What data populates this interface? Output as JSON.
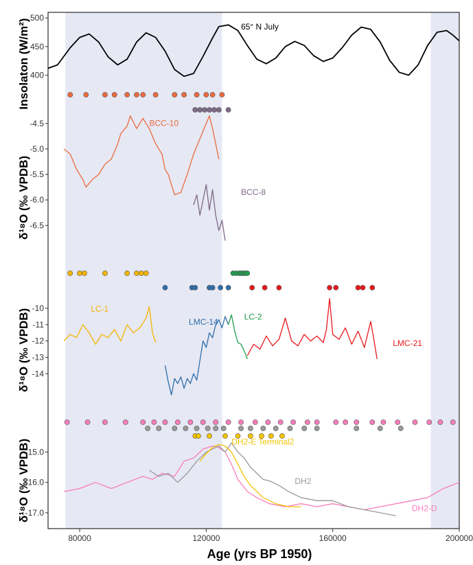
{
  "chart_data": {
    "type": "line",
    "x_axis": {
      "label": "Age (yrs BP 1950)",
      "range": [
        70000,
        200000
      ],
      "ticks": [
        80000,
        120000,
        160000,
        200000
      ],
      "tick_labels": [
        "80000",
        "120000",
        "160000",
        "200000"
      ]
    },
    "shaded_intervals": [
      [
        75500,
        125000
      ],
      [
        191000,
        200000
      ]
    ],
    "panels": [
      {
        "id": "insolation",
        "ylabel": "Insolaton (W/m²)",
        "y_ticks": [
          400,
          450,
          500
        ],
        "y_tick_labels": [
          "400",
          "450",
          "500"
        ],
        "ylim": [
          385,
          505
        ],
        "series": [
          {
            "name": "65° N July",
            "color": "#000000",
            "x": [
              70000,
              73000,
              77000,
              80000,
              83000,
              86000,
              89000,
              92000,
              95000,
              98000,
              101000,
              104000,
              107000,
              110000,
              113000,
              116000,
              119000,
              122000,
              124000,
              127000,
              130000,
              133000,
              136000,
              139000,
              142000,
              145000,
              148000,
              151000,
              154000,
              157000,
              160000,
              163000,
              166000,
              169000,
              172000,
              175000,
              178000,
              181000,
              184000,
              187000,
              190000,
              193000,
              196000,
              198000,
              200000
            ],
            "y": [
              412,
              418,
              448,
              466,
              472,
              458,
              432,
              418,
              428,
              458,
              474,
              466,
              442,
              410,
              398,
              403,
              433,
              465,
              485,
              488,
              478,
              452,
              428,
              420,
              430,
              450,
              459,
              452,
              434,
              424,
              430,
              448,
              470,
              484,
              480,
              458,
              426,
              405,
              400,
              418,
              452,
              475,
              478,
              470,
              460
            ]
          }
        ],
        "annotations": [
          {
            "text": "65° N July",
            "x": 131000,
            "y": 480
          }
        ]
      },
      {
        "id": "bcc",
        "ylabel": "δ¹⁸O (‰ VPDB)",
        "y_ticks": [
          -4.5,
          -5.0,
          -5.5,
          -6.0,
          -6.5
        ],
        "y_tick_labels": [
          "-4.5",
          "-5.0",
          "-5.5",
          "-6.0",
          "-6.5"
        ],
        "ylim": [
          -6.9,
          -4.3
        ],
        "reversed": true,
        "series": [
          {
            "name": "BCC-10",
            "color": "#EB6B3E",
            "x": [
              75000,
              77000,
              79000,
              81000,
              82000,
              84000,
              86000,
              88000,
              90000,
              92000,
              93000,
              95000,
              96000,
              98000,
              100000,
              102000,
              104000,
              106000,
              107000,
              108000,
              109000,
              110000,
              112000,
              114000,
              116000,
              118000,
              120000,
              121000,
              122000,
              123000,
              124000
            ],
            "y": [
              -5.0,
              -5.1,
              -5.4,
              -5.6,
              -5.75,
              -5.6,
              -5.5,
              -5.3,
              -5.2,
              -4.9,
              -4.7,
              -4.55,
              -4.35,
              -4.6,
              -4.4,
              -4.6,
              -4.9,
              -5.1,
              -5.4,
              -5.5,
              -5.7,
              -5.9,
              -5.85,
              -5.5,
              -5.1,
              -4.8,
              -4.5,
              -4.35,
              -4.6,
              -4.9,
              -5.2
            ]
          },
          {
            "name": "BCC-8",
            "color": "#7E6A86",
            "x": [
              116000,
              117000,
              118000,
              119000,
              120000,
              121000,
              122000,
              123000,
              124000,
              125000,
              126000
            ],
            "y": [
              -6.1,
              -5.9,
              -6.3,
              -6.0,
              -5.7,
              -6.2,
              -5.8,
              -6.3,
              -6.6,
              -6.4,
              -6.8
            ]
          }
        ],
        "annotations": [
          {
            "text": "BCC-10",
            "x": 102000,
            "y": -4.55
          },
          {
            "text": "BCC-8",
            "x": 131000,
            "y": -5.9
          }
        ]
      },
      {
        "id": "lc_lmc",
        "ylabel": "δ¹⁸O (‰ VPDB)",
        "y_ticks": [
          -10,
          -11,
          -12,
          -13,
          -14
        ],
        "y_tick_labels": [
          "-10",
          "-11",
          "-12",
          "-13",
          "-14"
        ],
        "ylim": [
          -15.5,
          -9.2
        ],
        "reversed": true,
        "series": [
          {
            "name": "LC-1",
            "color": "#F5B400",
            "x": [
              75000,
              77000,
              79000,
              81000,
              83000,
              85000,
              87000,
              89000,
              91000,
              93000,
              95000,
              97000,
              99000,
              101000,
              102000,
              103000,
              104000
            ],
            "y": [
              -12.0,
              -11.6,
              -11.8,
              -11.0,
              -11.5,
              -12.2,
              -11.6,
              -11.8,
              -11.3,
              -12.0,
              -11.0,
              -11.5,
              -11.2,
              -10.6,
              -9.9,
              -11.5,
              -12.1
            ]
          },
          {
            "name": "LMC-14",
            "color": "#2E6DA8",
            "x": [
              107000,
              108000,
              109000,
              110000,
              111000,
              112000,
              113000,
              114000,
              115000,
              116000,
              117000,
              118000,
              119000,
              120000,
              121000,
              122000,
              123000,
              124000,
              125000,
              126000,
              127000
            ],
            "y": [
              -13.5,
              -14.5,
              -15.3,
              -14.3,
              -14.6,
              -14.2,
              -14.9,
              -14.3,
              -14.6,
              -14.0,
              -14.4,
              -13.2,
              -12.0,
              -12.4,
              -11.5,
              -11.8,
              -11.0,
              -10.7,
              -11.2,
              -10.5,
              -11.0
            ]
          },
          {
            "name": "LC-2",
            "color": "#1E9E4E",
            "x": [
              127000,
              128000,
              129000,
              130000,
              131000,
              132000,
              133000
            ],
            "y": [
              -11.0,
              -10.4,
              -11.4,
              -12.1,
              -12.2,
              -12.6,
              -13.1
            ]
          },
          {
            "name": "LMC-21",
            "color": "#E8181B",
            "x": [
              133000,
              135000,
              137000,
              139000,
              141000,
              143000,
              145000,
              147000,
              149000,
              151000,
              153000,
              155000,
              157000,
              158000,
              159000,
              160000,
              162000,
              164000,
              166000,
              168000,
              170000,
              172000,
              173000,
              174000
            ],
            "y": [
              -12.9,
              -12.2,
              -12.5,
              -11.7,
              -12.3,
              -11.9,
              -10.6,
              -12.0,
              -12.3,
              -11.6,
              -12.0,
              -11.7,
              -12.1,
              -11.3,
              -9.4,
              -11.6,
              -11.9,
              -11.2,
              -12.2,
              -11.4,
              -12.4,
              -10.8,
              -11.9,
              -13.1
            ]
          }
        ],
        "annotations": [
          {
            "text": "LC-1",
            "x": 83500,
            "y": -10.2
          },
          {
            "text": "LMC-14",
            "x": 114500,
            "y": -11.0
          },
          {
            "text": "LC-2",
            "x": 132000,
            "y": -10.7
          },
          {
            "text": "LMC-21",
            "x": 179000,
            "y": -12.3
          }
        ]
      },
      {
        "id": "dh2",
        "ylabel": "δ¹⁸O (‰ VPDB)",
        "y_ticks": [
          -15.0,
          -16.0,
          -17.0
        ],
        "y_tick_labels": [
          "-15.0",
          "-16.0",
          "-17.0"
        ],
        "ylim": [
          -17.25,
          -14.65
        ],
        "reversed": true,
        "series": [
          {
            "name": "DH2-D",
            "color": "#F77DBB",
            "x": [
              75000,
              80000,
              85000,
              90000,
              95000,
              100000,
              103000,
              106000,
              110000,
              113000,
              116000,
              119000,
              122000,
              124000,
              126000,
              128000,
              130000,
              133000,
              136000,
              140000,
              145000,
              150000,
              155000,
              160000,
              165000,
              170000,
              175000,
              180000,
              185000,
              190000,
              195000,
              200000
            ],
            "y": [
              -16.3,
              -16.2,
              -16.0,
              -16.2,
              -16.0,
              -15.8,
              -15.9,
              -15.7,
              -15.8,
              -15.3,
              -15.2,
              -14.9,
              -14.8,
              -14.85,
              -15.0,
              -15.4,
              -15.9,
              -16.3,
              -16.5,
              -16.7,
              -16.8,
              -16.7,
              -16.8,
              -16.7,
              -16.8,
              -16.9,
              -16.8,
              -16.7,
              -16.6,
              -16.5,
              -16.2,
              -16.0
            ]
          },
          {
            "name": "DH2",
            "color": "#999999",
            "x": [
              102000,
              105000,
              108000,
              111000,
              114000,
              117000,
              120000,
              122000,
              124000,
              126000,
              128000,
              130000,
              132000,
              134000,
              136000,
              138000,
              140000,
              143000,
              146000,
              150000,
              155000,
              160000,
              165000,
              170000,
              175000,
              180000
            ],
            "y": [
              -15.6,
              -15.8,
              -15.7,
              -16.0,
              -15.7,
              -15.3,
              -15.0,
              -14.9,
              -14.8,
              -15.0,
              -14.7,
              -15.0,
              -15.2,
              -15.5,
              -15.7,
              -15.9,
              -15.95,
              -16.1,
              -16.3,
              -16.5,
              -16.6,
              -16.6,
              -16.8,
              -16.9,
              -17.0,
              -17.1
            ]
          },
          {
            "name": "DH2-E Terminal2",
            "color": "#F2C400",
            "x": [
              118000,
              120000,
              122000,
              124000,
              126000,
              128000,
              130000,
              132000,
              134000,
              136000,
              138000,
              140000,
              142000,
              144000,
              146000,
              148000,
              150000
            ],
            "y": [
              -15.3,
              -15.05,
              -14.85,
              -14.75,
              -14.8,
              -15.0,
              -15.4,
              -15.8,
              -16.1,
              -16.3,
              -16.5,
              -16.6,
              -16.7,
              -16.75,
              -16.8,
              -16.8,
              -16.8
            ]
          }
        ],
        "annotations": [
          {
            "text": "DH2-E Terminal2",
            "x": 128000,
            "y": -14.75
          },
          {
            "text": "DH2",
            "x": 148000,
            "y": -16.05
          },
          {
            "text": "DH2-D",
            "x": 185000,
            "y": -16.95
          }
        ]
      }
    ],
    "dating_rows": [
      {
        "panel": "bcc",
        "color": "#EB6B3E",
        "x": [
          77000,
          82000,
          88000,
          91000,
          95000,
          98000,
          100000,
          104000,
          110000,
          113000,
          117000,
          120000,
          122000,
          125000
        ]
      },
      {
        "panel": "bcc",
        "color": "#7E6A86",
        "x": [
          116500,
          118000,
          119500,
          121000,
          122500,
          124000,
          127000
        ]
      },
      {
        "panel": "lc_lmc",
        "color": "#F5B400",
        "x": [
          77000,
          80000,
          81500,
          88000,
          95000,
          98000,
          99500,
          101000
        ]
      },
      {
        "panel": "lc_lmc",
        "color": "#1E9E4E",
        "x": [
          128500,
          129500,
          130500,
          131000,
          131500,
          132000,
          132500,
          133000
        ]
      },
      {
        "panel": "lc_lmc",
        "color": "#2E6DA8",
        "x": [
          107000,
          115500,
          116500,
          121000,
          122000,
          124500,
          127000
        ]
      },
      {
        "panel": "lc_lmc",
        "color": "#E8181B",
        "x": [
          134500,
          138500,
          143000,
          159000,
          161000,
          168000,
          169500,
          172500
        ]
      },
      {
        "panel": "dh2",
        "color": "#F77DBB",
        "x": [
          76000,
          82500,
          88000,
          94500,
          100000,
          103500,
          107000,
          111000,
          115000,
          119000,
          123000,
          127000,
          131000,
          135500,
          139500,
          143500,
          147500,
          152000,
          155000,
          161000,
          164000,
          167500,
          172500,
          176000,
          180500,
          186000,
          190500,
          194000,
          198000
        ]
      },
      {
        "panel": "dh2",
        "color": "#999999",
        "x": [
          101500,
          105000,
          110000,
          113500,
          117000,
          120500,
          123000,
          125500,
          131000,
          134000,
          138000,
          142000,
          146500,
          151000,
          155000,
          167500,
          175000,
          181500
        ]
      },
      {
        "panel": "dh2",
        "color": "#F2C400",
        "x": [
          116500,
          117500,
          121000,
          126000,
          130000,
          134000,
          137500,
          140500,
          144000
        ]
      }
    ]
  }
}
